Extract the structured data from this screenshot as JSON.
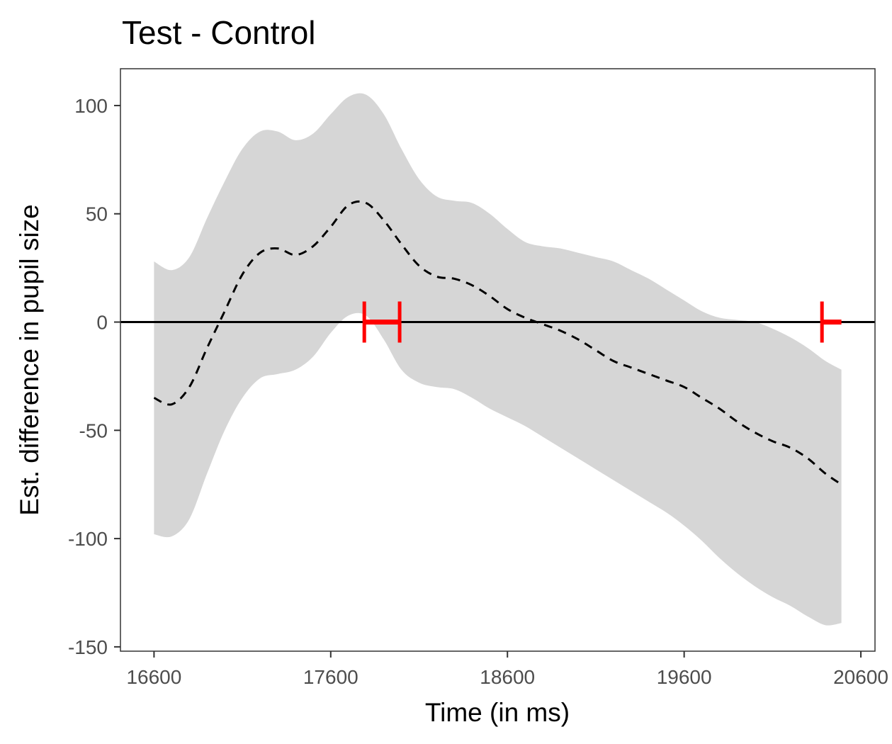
{
  "chart_data": {
    "type": "line",
    "title": "Test - Control",
    "xlabel": "Time (in ms)",
    "ylabel": "Est. difference in pupil size",
    "xlim": [
      16410,
      20680
    ],
    "ylim": [
      -152,
      117
    ],
    "xticks": [
      16600,
      17600,
      18600,
      19600,
      20600
    ],
    "yticks": [
      -150,
      -100,
      -50,
      0,
      50,
      100
    ],
    "xtick_labels": [
      "16600",
      "17600",
      "18600",
      "19600",
      "20600"
    ],
    "ytick_labels": [
      "-150",
      "-100",
      "-50",
      "0",
      "50",
      "100"
    ],
    "grid": false,
    "legend": "none",
    "x": [
      16600,
      16700,
      16800,
      16900,
      17000,
      17100,
      17200,
      17300,
      17400,
      17500,
      17600,
      17700,
      17800,
      17900,
      18000,
      18100,
      18200,
      18300,
      18400,
      18500,
      18600,
      18700,
      18800,
      18900,
      19000,
      19100,
      19200,
      19300,
      19400,
      19500,
      19600,
      19700,
      19800,
      19900,
      20000,
      20100,
      20200,
      20300,
      20400,
      20490
    ],
    "series": [
      {
        "role": "estimate",
        "values": [
          -35,
          -38,
          -30,
          -12,
          5,
          22,
          32,
          34,
          31,
          35,
          44,
          54,
          55,
          47,
          36,
          26,
          21,
          20,
          17,
          12,
          6,
          2,
          -1,
          -4,
          -8,
          -13,
          -18,
          -21,
          -24,
          -27,
          -30,
          -35,
          -40,
          -46,
          -51,
          -55,
          -58,
          -63,
          -70,
          -75
        ],
        "line_color": "#000000",
        "line_style": "dashed"
      },
      {
        "role": "upper",
        "values": [
          28,
          24,
          30,
          48,
          65,
          80,
          88,
          88,
          84,
          87,
          96,
          104,
          105,
          96,
          80,
          66,
          58,
          56,
          55,
          50,
          43,
          37,
          35,
          34,
          32,
          30,
          28,
          24,
          20,
          15,
          10,
          5,
          2,
          1,
          0,
          -3,
          -7,
          -12,
          -18,
          -22
        ],
        "role_of": "confidence band"
      },
      {
        "role": "lower",
        "values": [
          -98,
          -99,
          -91,
          -70,
          -50,
          -35,
          -26,
          -24,
          -22,
          -16,
          -5,
          3,
          3,
          -8,
          -22,
          -28,
          -30,
          -31,
          -35,
          -40,
          -44,
          -48,
          -53,
          -58,
          -63,
          -68,
          -73,
          -78,
          -83,
          -88,
          -94,
          -101,
          -109,
          -116,
          -122,
          -127,
          -131,
          -136,
          -140,
          -139
        ],
        "band_color": "#d6d6d6"
      }
    ],
    "reference_line": {
      "y": 0,
      "color": "#000000"
    },
    "significance_intervals": [
      {
        "start": 17790,
        "end": 17990,
        "color": "#ff0000"
      },
      {
        "start": 20380,
        "end": 20490,
        "color": "#ff0000",
        "open_right": true
      }
    ]
  }
}
